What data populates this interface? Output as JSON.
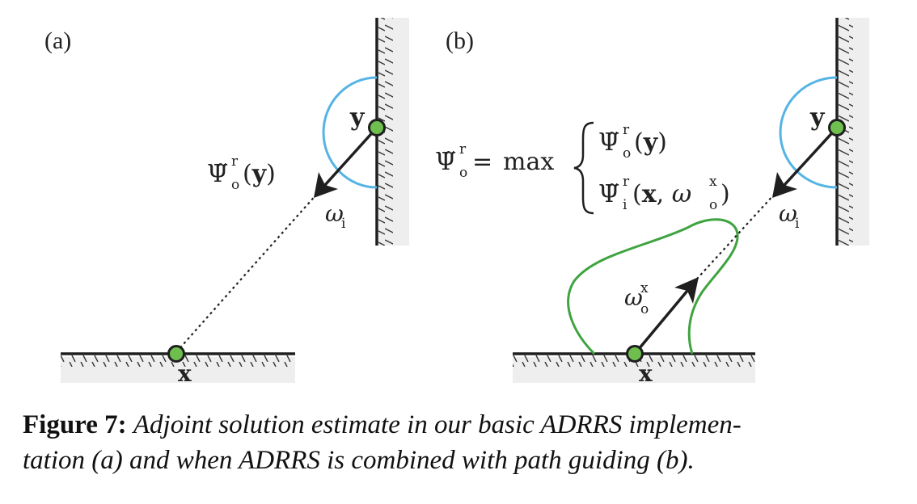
{
  "panels": {
    "a": {
      "label": "(a)"
    },
    "b": {
      "label": "(b)"
    }
  },
  "labels": {
    "y": "y",
    "x": "x",
    "omega": "ω",
    "psi": "Ψ̃",
    "sub_o": "o",
    "sub_i": "i",
    "sup_r": "r",
    "sup_x": "x",
    "arg_y": "(y)",
    "max": "max",
    "equals": "="
  },
  "caption": {
    "lead": "Figure 7:",
    "line1": "Adjoint solution estimate in our basic ADRRS implemen-",
    "line2": "tation (a) and when ADRRS is combined with path guiding (b)."
  },
  "colors": {
    "blue_lobe": "#55b4e4",
    "green_lobe": "#3fa33f",
    "point_fill": "#6fbf4f",
    "ink": "#1f1f1f"
  }
}
